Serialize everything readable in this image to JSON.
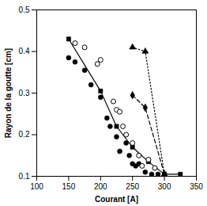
{
  "chart_data": {
    "type": "line",
    "x_label": "Courant [A]",
    "y_label": "Rayon de la goutte [cm]",
    "xlim": [
      100,
      350
    ],
    "xticks": [
      100,
      150,
      200,
      250,
      300,
      350
    ],
    "ylim": [
      0.1,
      0.5
    ],
    "yticks": [
      0.1,
      0.2,
      0.3,
      0.4,
      0.5
    ],
    "series": [
      {
        "type": "line",
        "color": "#000000",
        "marker": "square",
        "line_style": "solid",
        "x": [
          150,
          200,
          225,
          250,
          275,
          300,
          325
        ],
        "values": [
          0.43,
          0.305,
          0.22,
          0.17,
          0.135,
          0.105,
          0.105
        ]
      },
      {
        "type": "scatter",
        "color": "#000000",
        "marker": "circle",
        "line_style": "none",
        "x": [
          150,
          160,
          175,
          185,
          200,
          210,
          215,
          225,
          230,
          240,
          245,
          250,
          255,
          260,
          270,
          280,
          290
        ],
        "values": [
          0.385,
          0.375,
          0.355,
          0.32,
          0.29,
          0.24,
          0.22,
          0.195,
          0.16,
          0.18,
          0.15,
          0.13,
          0.125,
          0.13,
          0.11,
          0.105,
          0.105
        ]
      },
      {
        "type": "scatter",
        "color": "#000000",
        "marker": "circle-open",
        "line_style": "none",
        "x": [
          160,
          175,
          195,
          200,
          220,
          225,
          230,
          235,
          240,
          250,
          260,
          265,
          275,
          285
        ],
        "values": [
          0.42,
          0.41,
          0.37,
          0.38,
          0.28,
          0.26,
          0.255,
          0.22,
          0.2,
          0.18,
          0.15,
          0.125,
          0.14,
          0.12
        ]
      },
      {
        "type": "line",
        "color": "#000000",
        "marker": "diamond",
        "line_style": "dashed",
        "x": [
          250,
          270,
          300
        ],
        "values": [
          0.295,
          0.265,
          0.105
        ]
      },
      {
        "type": "line",
        "color": "#000000",
        "marker": "triangle",
        "line_style": "dotted",
        "x": [
          250,
          270,
          300
        ],
        "values": [
          0.41,
          0.4,
          0.105
        ]
      }
    ]
  }
}
